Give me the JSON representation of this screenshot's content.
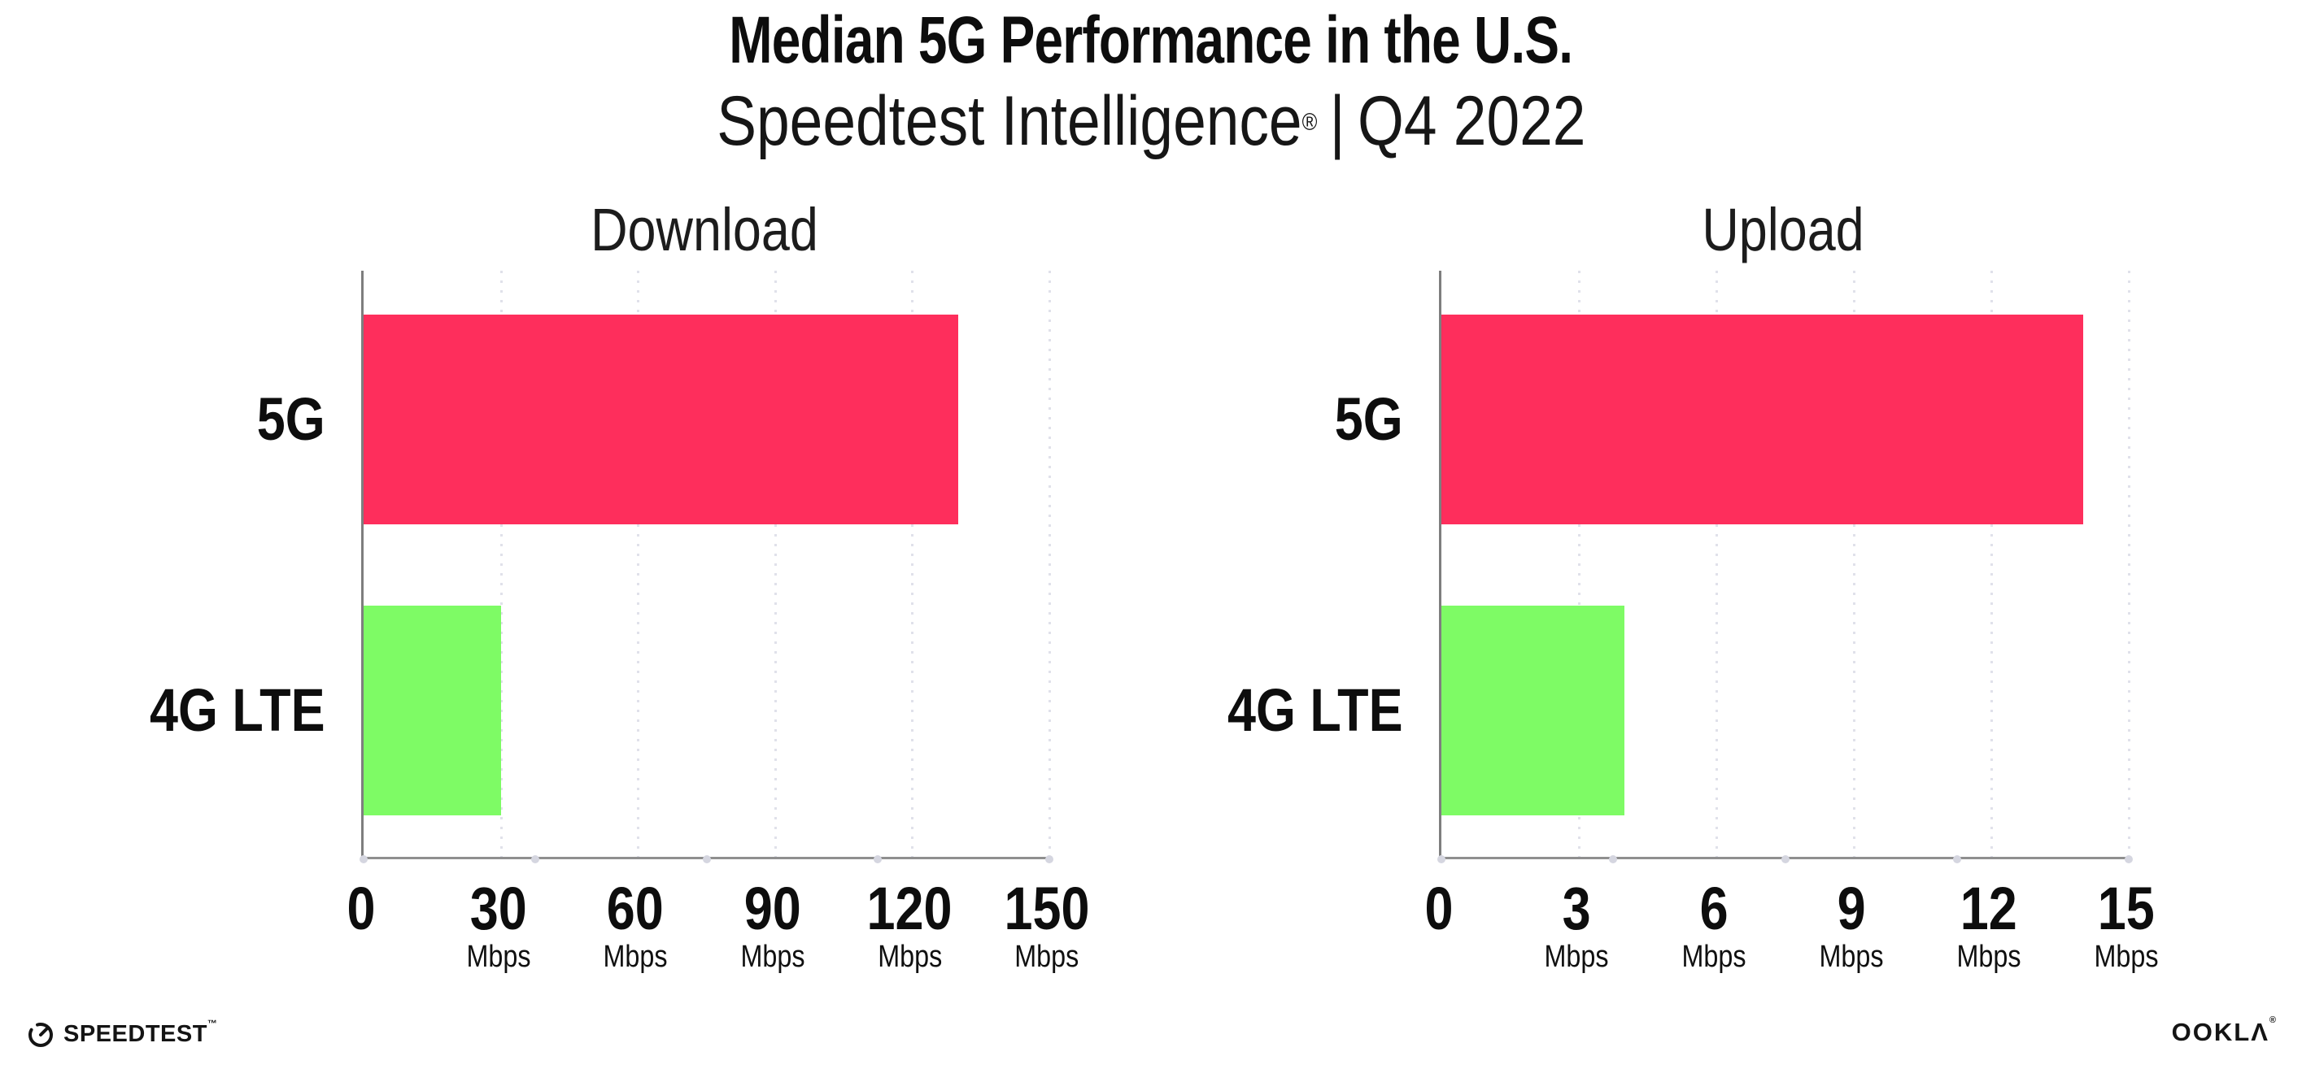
{
  "header": {
    "title": "Median 5G Performance in the U.S.",
    "subtitle_brand": "Speedtest Intelligence",
    "subtitle_reg": "®",
    "subtitle_separator": "|",
    "subtitle_period": "Q4 2022"
  },
  "colors": {
    "bar_5g": "#fe2e5c",
    "bar_4g_lte": "#7efb65",
    "gridline": "#e0e1ea",
    "axis": "#8f8f8f",
    "text": "#0d0d0d"
  },
  "chart_data": [
    {
      "type": "bar",
      "orientation": "horizontal",
      "title": "Download",
      "categories": [
        "5G",
        "4G LTE"
      ],
      "values": [
        130,
        30
      ],
      "unit": "Mbps",
      "xlim": [
        0,
        150
      ],
      "xticks": [
        0,
        30,
        60,
        90,
        120,
        150
      ],
      "grid": "vertical-dotted",
      "bar_colors": [
        "#fe2e5c",
        "#7efb65"
      ]
    },
    {
      "type": "bar",
      "orientation": "horizontal",
      "title": "Upload",
      "categories": [
        "5G",
        "4G LTE"
      ],
      "values": [
        14,
        4
      ],
      "unit": "Mbps",
      "xlim": [
        0,
        15
      ],
      "xticks": [
        0,
        3,
        6,
        9,
        12,
        15
      ],
      "grid": "vertical-dotted",
      "bar_colors": [
        "#fe2e5c",
        "#7efb65"
      ]
    }
  ],
  "footer": {
    "speedtest_label": "SPEEDTEST",
    "speedtest_mark": "™",
    "ookla_label": "OOKLΛ",
    "ookla_mark": "®"
  }
}
